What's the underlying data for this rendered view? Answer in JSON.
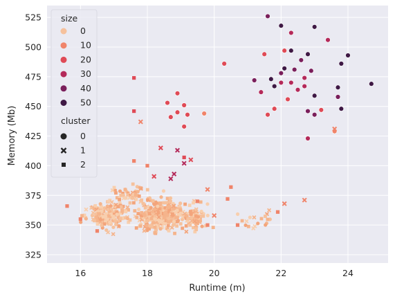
{
  "chart_data": {
    "type": "scatter",
    "xlabel": "Runtime (m)",
    "ylabel": "Memory (Mb)",
    "xlim": [
      15.0,
      25.2
    ],
    "ylim": [
      318,
      535
    ],
    "xticks": [
      16,
      18,
      20,
      22,
      24
    ],
    "yticks": [
      325,
      350,
      375,
      400,
      425,
      450,
      475,
      500,
      525
    ],
    "grid": true,
    "background": "#eaeaf2",
    "legend": {
      "placement": "top-left",
      "size_title": "size",
      "size_entries": [
        {
          "label": "0",
          "color": "#f6c19c"
        },
        {
          "label": "10",
          "color": "#f0846a"
        },
        {
          "label": "20",
          "color": "#df4a56"
        },
        {
          "label": "30",
          "color": "#b42a5a"
        },
        {
          "label": "40",
          "color": "#7a1f5b"
        },
        {
          "label": "50",
          "color": "#3f1945"
        }
      ],
      "cluster_title": "cluster",
      "cluster_entries": [
        {
          "label": "0",
          "marker": "circle"
        },
        {
          "label": "1",
          "marker": "x"
        },
        {
          "label": "2",
          "marker": "square"
        }
      ]
    },
    "series": [
      {
        "name": "0",
        "marker": "circle",
        "points": [
          [
            21.6,
            526,
            35
          ],
          [
            22.0,
            518,
            50
          ],
          [
            22.3,
            512,
            25
          ],
          [
            23.0,
            517,
            50
          ],
          [
            23.4,
            506,
            25
          ],
          [
            21.5,
            494,
            20
          ],
          [
            22.1,
            497,
            20
          ],
          [
            22.3,
            497,
            50
          ],
          [
            22.8,
            494,
            50
          ],
          [
            23.8,
            486,
            45
          ],
          [
            24.0,
            493,
            50
          ],
          [
            22.0,
            478,
            35
          ],
          [
            22.1,
            482,
            50
          ],
          [
            22.4,
            481,
            40
          ],
          [
            22.6,
            489,
            35
          ],
          [
            22.9,
            480,
            35
          ],
          [
            22.7,
            474,
            30
          ],
          [
            21.2,
            472,
            40
          ],
          [
            21.7,
            473,
            45
          ],
          [
            21.8,
            467,
            45
          ],
          [
            22.0,
            470,
            25
          ],
          [
            22.3,
            470,
            30
          ],
          [
            22.7,
            467,
            30
          ],
          [
            22.5,
            464,
            30
          ],
          [
            23.0,
            459,
            45
          ],
          [
            23.7,
            466,
            45
          ],
          [
            24.7,
            469,
            50
          ],
          [
            21.4,
            462,
            30
          ],
          [
            22.2,
            456,
            20
          ],
          [
            23.7,
            458,
            35
          ],
          [
            21.8,
            448,
            20
          ],
          [
            22.8,
            446,
            35
          ],
          [
            23.0,
            443,
            40
          ],
          [
            23.2,
            447,
            15
          ],
          [
            23.8,
            448,
            50
          ],
          [
            21.6,
            443,
            15
          ],
          [
            22.8,
            423,
            25
          ],
          [
            20.3,
            486,
            15
          ],
          [
            23.6,
            429,
            10
          ],
          [
            18.9,
            461,
            20
          ],
          [
            18.6,
            453,
            20
          ],
          [
            18.9,
            445,
            20
          ],
          [
            19.1,
            451,
            15
          ],
          [
            19.2,
            443,
            20
          ],
          [
            18.7,
            441,
            20
          ],
          [
            19.1,
            433,
            15
          ],
          [
            19.7,
            444,
            10
          ]
        ]
      },
      {
        "name": "1",
        "marker": "x",
        "points": [
          [
            18.4,
            415,
            20
          ],
          [
            18.9,
            413,
            25
          ],
          [
            19.3,
            405,
            20
          ],
          [
            19.1,
            402,
            25
          ],
          [
            18.8,
            393,
            25
          ],
          [
            18.7,
            389,
            25
          ],
          [
            18.2,
            391,
            20
          ],
          [
            17.8,
            437,
            5
          ],
          [
            19.8,
            380,
            5
          ],
          [
            20.0,
            358,
            5
          ],
          [
            22.7,
            371,
            5
          ],
          [
            22.1,
            368,
            10
          ],
          [
            23.6,
            431,
            5
          ]
        ]
      },
      {
        "name": "2",
        "marker": "square",
        "points": [
          [
            17.6,
            474,
            20
          ],
          [
            17.6,
            446,
            20
          ],
          [
            17.6,
            404,
            10
          ],
          [
            18.0,
            400,
            10
          ],
          [
            19.1,
            407,
            15
          ],
          [
            20.5,
            382,
            5
          ],
          [
            20.4,
            372,
            5
          ],
          [
            21.9,
            361,
            5
          ],
          [
            20.7,
            350,
            5
          ],
          [
            15.6,
            366,
            5
          ],
          [
            16.0,
            355,
            5
          ],
          [
            16.5,
            345,
            5
          ],
          [
            19.8,
            350,
            5
          ],
          [
            19.5,
            370,
            5
          ]
        ]
      }
    ]
  }
}
